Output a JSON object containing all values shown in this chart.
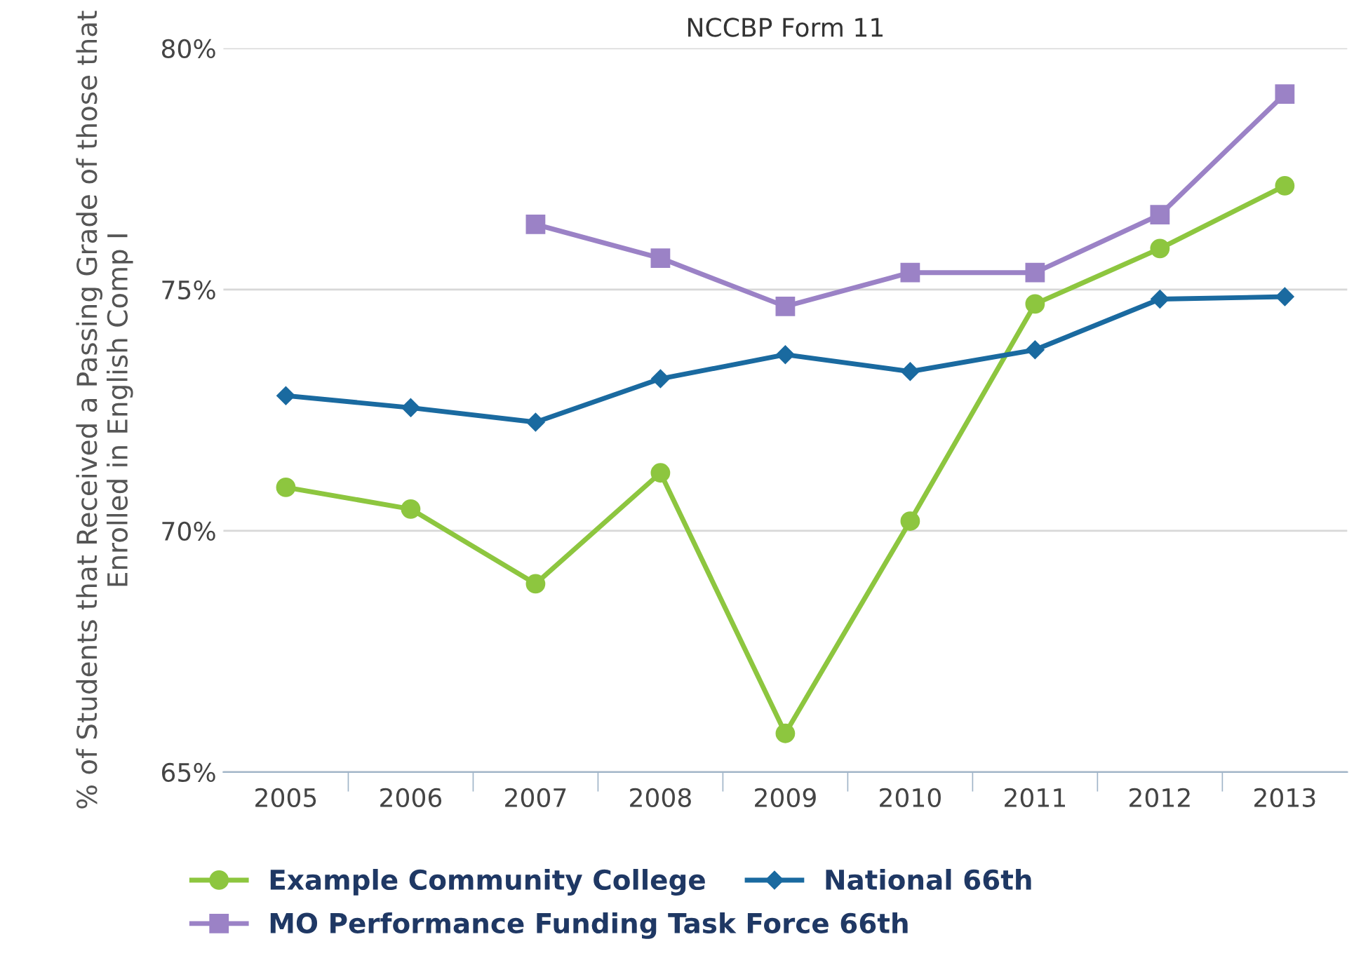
{
  "chart_data": {
    "type": "line",
    "title": "NCCBP Form 11",
    "ylabel": "% of Students that Received a Passing Grade of those that Enrolled in English Comp I",
    "categories": [
      "2005",
      "2006",
      "2007",
      "2008",
      "2009",
      "2010",
      "2011",
      "2012",
      "2013"
    ],
    "series": [
      {
        "name": "Example Community College",
        "color": "#8dc63f",
        "marker": "circle",
        "values": [
          70.9,
          70.45,
          68.9,
          71.2,
          65.8,
          70.2,
          74.7,
          75.85,
          77.15
        ]
      },
      {
        "name": "National 66th",
        "color": "#1a6aa0",
        "marker": "diamond",
        "values": [
          72.8,
          72.55,
          72.25,
          73.15,
          73.65,
          73.3,
          73.75,
          74.8,
          74.85
        ]
      },
      {
        "name": "MO Performance Funding Task Force 66th",
        "color": "#9b82c6",
        "marker": "square",
        "values": [
          null,
          null,
          76.35,
          75.65,
          74.65,
          75.35,
          75.35,
          76.55,
          79.05
        ]
      }
    ],
    "ylim": [
      65,
      80
    ],
    "yticks": [
      {
        "value": 65,
        "label": "65%"
      },
      {
        "value": 70,
        "label": "70%"
      },
      {
        "value": 75,
        "label": "75%"
      },
      {
        "value": 80,
        "label": "80%"
      }
    ],
    "grid": "y",
    "legend": "bottom"
  }
}
